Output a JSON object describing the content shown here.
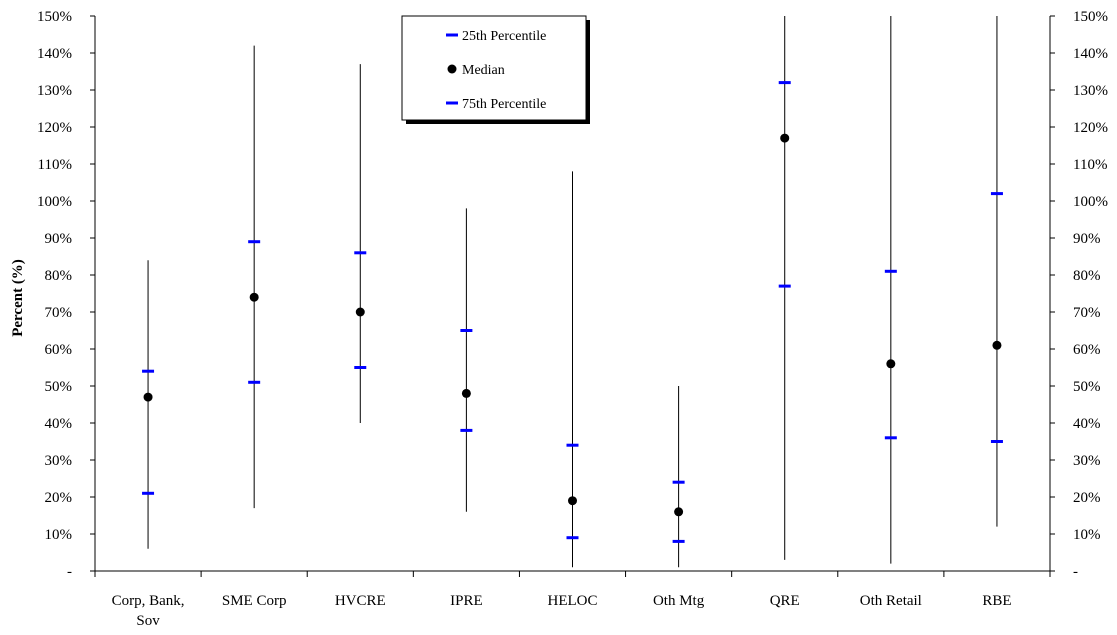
{
  "chart_data": {
    "type": "range-dot",
    "categories": [
      [
        "Corp, Bank,",
        "Sov"
      ],
      [
        "SME Corp"
      ],
      [
        "HVCRE"
      ],
      [
        "IPRE"
      ],
      [
        "HELOC"
      ],
      [
        "Oth Mtg"
      ],
      [
        "QRE"
      ],
      [
        "Oth Retail"
      ],
      [
        "RBE"
      ]
    ],
    "range_min": [
      6,
      17,
      40,
      16,
      1,
      1,
      3,
      2,
      12
    ],
    "range_max": [
      84,
      142,
      137,
      98,
      108,
      50,
      150,
      150,
      150
    ],
    "series": [
      {
        "name": "25th Percentile",
        "marker": "dash",
        "color": "#0000ff",
        "values": [
          21,
          51,
          55,
          38,
          9,
          8,
          77,
          36,
          35
        ]
      },
      {
        "name": "Median",
        "marker": "dot",
        "color": "#000000",
        "values": [
          47,
          74,
          70,
          48,
          19,
          16,
          117,
          56,
          61
        ]
      },
      {
        "name": "75th Percentile",
        "marker": "dash",
        "color": "#0000ff",
        "values": [
          54,
          89,
          86,
          65,
          34,
          24,
          132,
          81,
          102
        ]
      }
    ],
    "ylabel": "Percent (%)",
    "ylim": [
      0,
      150
    ],
    "yticks": [
      0,
      10,
      20,
      30,
      40,
      50,
      60,
      70,
      80,
      90,
      100,
      110,
      120,
      130,
      140,
      150
    ],
    "ytick_labels": [
      "-",
      "10%",
      "20%",
      "30%",
      "40%",
      "50%",
      "60%",
      "70%",
      "80%",
      "90%",
      "100%",
      "110%",
      "120%",
      "130%",
      "140%",
      "150%"
    ],
    "legend_position": "top-center",
    "grid": false
  }
}
